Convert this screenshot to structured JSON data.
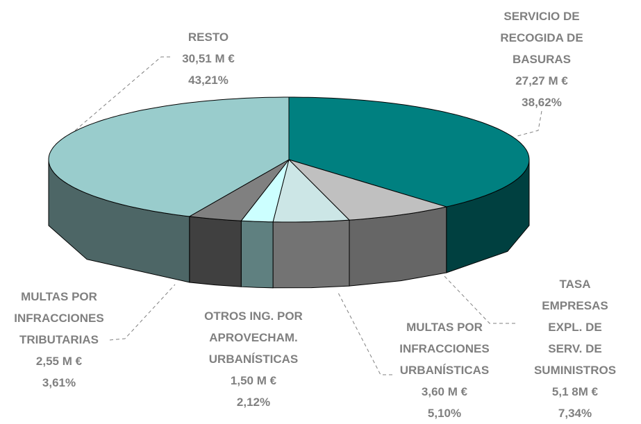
{
  "chart_data": {
    "type": "pie",
    "categories": [
      "SERVICIO DE\nRECOGIDA DE\nBASURAS",
      "TASA EMPRESAS\nEXPL. DE SERV. DE\nSUMINISTROS",
      "MULTAS POR\nINFRACCIONES\nURBANÍSTICAS",
      "OTROS ING. POR\nAPROVECHAM.\nURBANÍSTICAS",
      "MULTAS POR\nINFRACCIONES\nTRIBUTARIAS",
      "RESTO"
    ],
    "values": [
      27.27,
      5.18,
      3.6,
      1.5,
      2.55,
      30.51
    ],
    "value_labels": [
      "27,27 M €",
      "5,1 8M €",
      "3,60 M €",
      "1,50 M €",
      "2,55 M €",
      "30,51 M €"
    ],
    "percentages": [
      38.62,
      7.34,
      5.1,
      2.12,
      3.61,
      43.21
    ],
    "percentage_labels": [
      "38,62%",
      "7,34%",
      "5,10%",
      "2,12%",
      "3,61%",
      "43,21%"
    ],
    "colors": [
      "#008080",
      "#c0c0c0",
      "#cce6e6",
      "#ccffff",
      "#808080",
      "#99cccc"
    ],
    "side_colors": [
      "#004040",
      "#666666",
      "#737373",
      "#5f8080",
      "#404040",
      "#4d6666"
    ]
  }
}
